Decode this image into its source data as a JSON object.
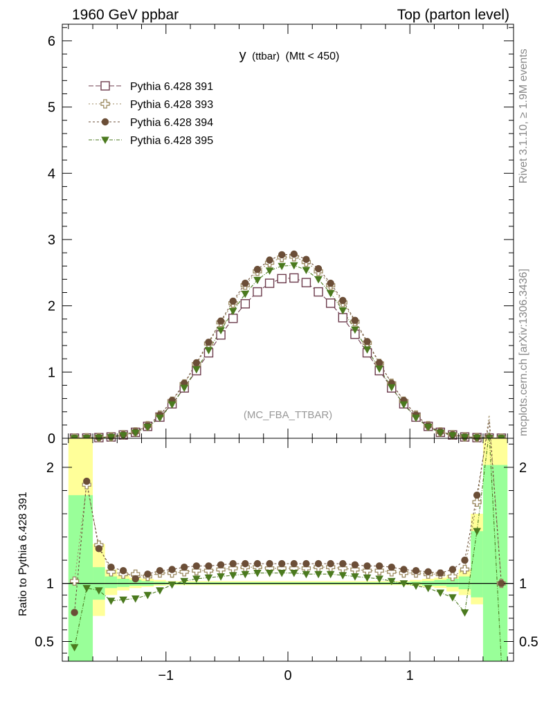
{
  "header": {
    "left": "1960 GeV ppbar",
    "right": "Top (parton level)"
  },
  "side": {
    "rivet": "Rivet 3.1.10, ≥ 1.9M events",
    "mcplots": "mcplots.cern.ch [arXiv:1306.3436]"
  },
  "chart_data": {
    "type": "scatter",
    "title_main": "y",
    "title_sub": "(ttbar)",
    "title_cut": "(Mtt < 450)",
    "watermark": "(MC_FBA_TTBAR)",
    "ylabel_ratio": "Ratio to Pythia 6.428 391",
    "xlim": [
      -1.85,
      1.85
    ],
    "ylim_main": [
      0,
      6.25
    ],
    "ylim_ratio": [
      0.33,
      2.25
    ],
    "x_ticks": [
      "−1",
      "0",
      "1"
    ],
    "y_ticks_main": [
      "0",
      "1",
      "2",
      "3",
      "4",
      "5",
      "6"
    ],
    "y_ticks_ratio": [
      "0.5",
      "1",
      "2"
    ],
    "x": [
      -1.75,
      -1.65,
      -1.55,
      -1.45,
      -1.35,
      -1.25,
      -1.15,
      -1.05,
      -0.95,
      -0.85,
      -0.75,
      -0.65,
      -0.55,
      -0.45,
      -0.35,
      -0.25,
      -0.15,
      -0.05,
      0.05,
      0.15,
      0.25,
      0.35,
      0.45,
      0.55,
      0.65,
      0.75,
      0.85,
      0.95,
      1.05,
      1.15,
      1.25,
      1.35,
      1.45,
      1.55,
      1.65,
      1.75
    ],
    "series": [
      {
        "name": "Pythia 6.428 391",
        "color": "#6b3a4b",
        "marker": "open-square",
        "dash": "7,3",
        "values": [
          0.002,
          0.004,
          0.01,
          0.02,
          0.05,
          0.09,
          0.18,
          0.32,
          0.52,
          0.76,
          1.02,
          1.29,
          1.56,
          1.81,
          2.03,
          2.21,
          2.34,
          2.41,
          2.42,
          2.35,
          2.21,
          2.04,
          1.82,
          1.57,
          1.29,
          1.02,
          0.76,
          0.52,
          0.32,
          0.18,
          0.09,
          0.05,
          0.02,
          0.01,
          0.004,
          0.002
        ],
        "ratio": [
          1.0,
          1.0,
          1.0,
          1.0,
          1.0,
          1.0,
          1.0,
          1.0,
          1.0,
          1.0,
          1.0,
          1.0,
          1.0,
          1.0,
          1.0,
          1.0,
          1.0,
          1.0,
          1.0,
          1.0,
          1.0,
          1.0,
          1.0,
          1.0,
          1.0,
          1.0,
          1.0,
          1.0,
          1.0,
          1.0,
          1.0,
          1.0,
          1.0,
          1.0,
          1.0,
          1.0
        ]
      },
      {
        "name": "Pythia 6.428 393",
        "color": "#9c8a60",
        "marker": "open-cross",
        "dash": "2,3",
        "values": [
          0.002,
          0.007,
          0.013,
          0.023,
          0.054,
          0.097,
          0.19,
          0.35,
          0.56,
          0.82,
          1.12,
          1.43,
          1.75,
          2.04,
          2.31,
          2.52,
          2.65,
          2.73,
          2.74,
          2.66,
          2.52,
          2.31,
          2.05,
          1.76,
          1.44,
          1.13,
          0.83,
          0.56,
          0.35,
          0.19,
          0.097,
          0.054,
          0.023,
          0.013,
          0.007,
          0.002
        ],
        "ratio": [
          1.02,
          1.85,
          1.33,
          1.1,
          1.08,
          1.08,
          1.06,
          1.09,
          1.09,
          1.1,
          1.11,
          1.11,
          1.12,
          1.13,
          1.14,
          1.14,
          1.13,
          1.13,
          1.13,
          1.13,
          1.14,
          1.14,
          1.13,
          1.12,
          1.11,
          1.11,
          1.1,
          1.09,
          1.09,
          1.08,
          1.08,
          1.06,
          1.12,
          1.7,
          2.45,
          1.0
        ]
      },
      {
        "name": "Pythia 6.428 394",
        "color": "#6b4e37",
        "marker": "filled-circle",
        "dash": "3,3",
        "values": [
          0.002,
          0.007,
          0.013,
          0.023,
          0.055,
          0.1,
          0.19,
          0.35,
          0.57,
          0.83,
          1.14,
          1.45,
          1.77,
          2.07,
          2.34,
          2.55,
          2.69,
          2.77,
          2.78,
          2.7,
          2.56,
          2.34,
          2.08,
          1.78,
          1.46,
          1.14,
          0.83,
          0.57,
          0.35,
          0.19,
          0.1,
          0.055,
          0.023,
          0.013,
          0.007,
          0.002
        ],
        "ratio": [
          0.75,
          1.88,
          1.3,
          1.14,
          1.11,
          1.04,
          1.08,
          1.11,
          1.12,
          1.14,
          1.15,
          1.15,
          1.16,
          1.17,
          1.17,
          1.17,
          1.17,
          1.17,
          1.17,
          1.17,
          1.17,
          1.17,
          1.17,
          1.16,
          1.15,
          1.15,
          1.14,
          1.12,
          1.11,
          1.1,
          1.09,
          1.12,
          1.2,
          1.76,
          2.4,
          1.0
        ]
      },
      {
        "name": "Pythia 6.428 395",
        "color": "#4b7a1f",
        "marker": "filled-triangle-down",
        "dash": "5,2,1,2",
        "values": [
          0.002,
          0.004,
          0.009,
          0.018,
          0.044,
          0.083,
          0.17,
          0.31,
          0.51,
          0.76,
          1.04,
          1.33,
          1.63,
          1.92,
          2.18,
          2.39,
          2.53,
          2.6,
          2.61,
          2.54,
          2.4,
          2.19,
          1.93,
          1.64,
          1.34,
          1.05,
          0.77,
          0.51,
          0.31,
          0.17,
          0.083,
          0.044,
          0.018,
          0.009,
          0.004,
          0.002
        ],
        "ratio": [
          0.45,
          0.96,
          0.94,
          0.85,
          0.86,
          0.87,
          0.9,
          0.94,
          0.99,
          1.02,
          1.04,
          1.05,
          1.06,
          1.07,
          1.08,
          1.09,
          1.09,
          1.09,
          1.09,
          1.08,
          1.08,
          1.08,
          1.07,
          1.06,
          1.05,
          1.04,
          1.02,
          1.0,
          0.98,
          0.96,
          0.92,
          0.88,
          0.75,
          1.45,
          2.3,
          0.33
        ]
      }
    ],
    "bands": [
      {
        "x0": -1.8,
        "x1": -1.6,
        "yellow": [
          0.33,
          2.25
        ],
        "green": [
          0.33,
          1.76
        ]
      },
      {
        "x0": -1.6,
        "x1": -1.5,
        "yellow": [
          0.72,
          1.34
        ],
        "green": [
          0.86,
          1.14
        ]
      },
      {
        "x0": -1.5,
        "x1": -1.4,
        "yellow": [
          0.9,
          1.12
        ],
        "green": [
          0.96,
          1.06
        ]
      },
      {
        "x0": -1.4,
        "x1": -1.3,
        "yellow": [
          0.94,
          1.07
        ],
        "green": [
          0.97,
          1.04
        ]
      },
      {
        "x0": -1.3,
        "x1": -1.2,
        "yellow": [
          0.96,
          1.05
        ],
        "green": [
          0.98,
          1.03
        ]
      },
      {
        "x0": -1.2,
        "x1": -1.1,
        "yellow": [
          0.97,
          1.04
        ],
        "green": [
          0.98,
          1.02
        ]
      },
      {
        "x0": -1.1,
        "x1": -1.0,
        "yellow": [
          0.98,
          1.03
        ],
        "green": [
          0.99,
          1.015
        ]
      },
      {
        "x0": -1.0,
        "x1": 1.0,
        "yellow": [
          0.985,
          1.02
        ],
        "green": [
          0.992,
          1.01
        ]
      },
      {
        "x0": 1.0,
        "x1": 1.1,
        "yellow": [
          0.98,
          1.03
        ],
        "green": [
          0.99,
          1.015
        ]
      },
      {
        "x0": 1.1,
        "x1": 1.2,
        "yellow": [
          0.97,
          1.04
        ],
        "green": [
          0.98,
          1.02
        ]
      },
      {
        "x0": 1.2,
        "x1": 1.3,
        "yellow": [
          0.96,
          1.05
        ],
        "green": [
          0.98,
          1.03
        ]
      },
      {
        "x0": 1.3,
        "x1": 1.4,
        "yellow": [
          0.93,
          1.07
        ],
        "green": [
          0.97,
          1.04
        ]
      },
      {
        "x0": 1.4,
        "x1": 1.5,
        "yellow": [
          0.9,
          1.12
        ],
        "green": [
          0.95,
          1.06
        ]
      },
      {
        "x0": 1.5,
        "x1": 1.6,
        "yellow": [
          0.82,
          1.6
        ],
        "green": [
          0.88,
          1.45
        ]
      },
      {
        "x0": 1.6,
        "x1": 1.8,
        "yellow": [
          0.33,
          2.25
        ],
        "green": [
          0.33,
          2.02
        ]
      }
    ]
  }
}
